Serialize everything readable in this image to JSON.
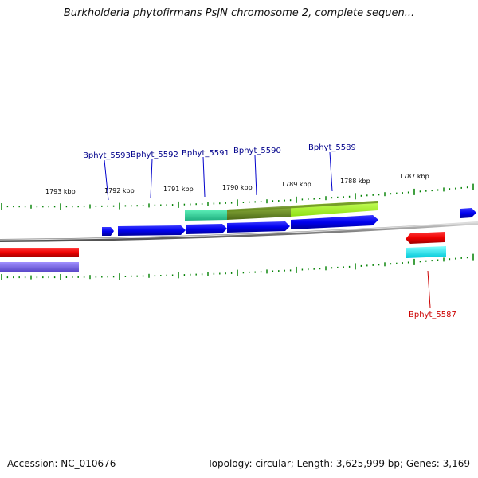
{
  "title": "Burkholderia phytofirmans PsJN chromosome 2, complete sequen...",
  "footer": {
    "accession": "Accession: NC_010676",
    "summary": "Topology: circular; Length: 3,625,999 bp; Genes: 3,169"
  },
  "scale_labels": [
    "1793 kbp",
    "1792 kbp",
    "1791 kbp",
    "1790 kbp",
    "1789 kbp",
    "1788 kbp",
    "1787 kbp"
  ],
  "gene_labels": {
    "g5593": "Bphyt_5593",
    "g5592": "Bphyt_5592",
    "g5591": "Bphyt_5591",
    "g5590": "Bphyt_5590",
    "g5589": "Bphyt_5589",
    "g5587": "Bphyt_5587"
  },
  "colors": {
    "backbone": "#808080",
    "forward_cds": "#0000ee",
    "reverse_cds": "#ee0000",
    "tick": "#008000",
    "label_forward": "#00008b",
    "label_reverse": "#cc0000",
    "feature_green": "#40e0a0",
    "feature_olive": "#6b8e23",
    "feature_lime": "#adff2f",
    "feature_cyan": "#00e5ee",
    "feature_lavender": "#7b68ee"
  }
}
